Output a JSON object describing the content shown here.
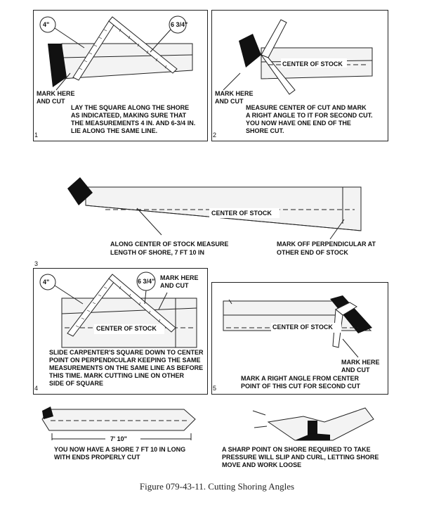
{
  "panels": [
    {
      "number": "1",
      "callouts": [
        "4\"",
        "6 3/4\""
      ],
      "mark_label": [
        "MARK HERE",
        "AND CUT"
      ],
      "instructions": [
        "LAY THE SQUARE ALONG THE SHORE",
        "AS INDICATEED, MAKING SURE THAT",
        "THE MEASUREMENTS 4 IN. AND 6-3/4 IN.",
        "LIE ALONG THE SAME LINE."
      ]
    },
    {
      "number": "2",
      "center_label": "CENTER OF STOCK",
      "mark_label": [
        "MARK HERE",
        "AND CUT"
      ],
      "instructions": [
        "MEASURE CENTER OF CUT AND MARK",
        "A RIGHT ANGLE TO IT FOR SECOND CUT.",
        "YOU NOW HAVE ONE END OF THE",
        "SHORE CUT."
      ]
    },
    {
      "number": "3",
      "center_label": "CENTER OF STOCK",
      "measure_note": [
        "ALONG CENTER OF STOCK MEASURE",
        "LENGTH OF SHORE, 7 FT 10 IN"
      ],
      "perp_note": [
        "MARK OFF PERPENDICULAR AT",
        "OTHER END OF STOCK"
      ]
    },
    {
      "number": "4",
      "callouts": [
        "4\"",
        "6 3/4\""
      ],
      "mark_label": [
        "MARK HERE",
        "AND CUT"
      ],
      "center_label": "CENTER OF STOCK",
      "instructions": [
        "SLIDE CARPENTER'S SQUARE DOWN TO CENTER",
        "POINT ON PERPENDICULAR KEEPING THE SAME",
        "MEASUREMENTS ON THE SAME LINE AS BEFORE",
        "THIS TIME. MARK CUTTING LINE ON OTHER",
        "SIDE OF SQUARE"
      ]
    },
    {
      "number": "5",
      "center_label": "CENTER OF STOCK",
      "mark_label": [
        "MARK HERE",
        "AND CUT"
      ],
      "instructions": [
        "MARK A RIGHT ANGLE FROM CENTER",
        "POINT OF THIS CUT FOR SECOND CUT"
      ]
    }
  ],
  "bottom_left": {
    "dimension": "7' 10\"",
    "note": [
      "YOU NOW HAVE A SHORE 7 FT 10 IN LONG",
      "WITH ENDS PROPERLY CUT"
    ]
  },
  "bottom_right": {
    "note": [
      "A SHARP POINT ON SHORE REQUIRED TO TAKE",
      "PRESSURE WILL SLIP AND CURL, LETTING SHORE",
      "MOVE AND WORK LOOSE"
    ]
  },
  "caption": "Figure 079-43-11.  Cutting Shoring Angles"
}
